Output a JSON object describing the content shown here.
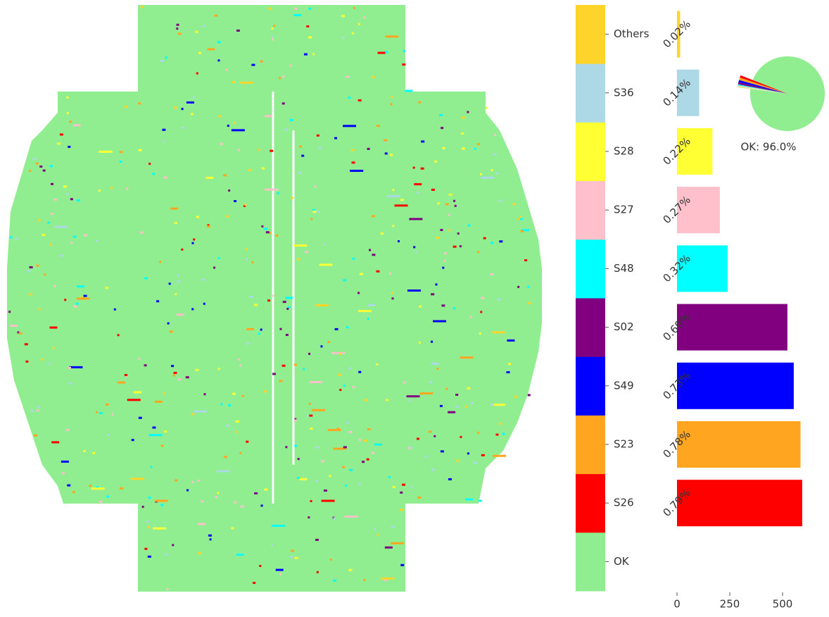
{
  "chart_data": [
    {
      "type": "colorbar",
      "categories": [
        "OK",
        "S26",
        "S23",
        "S49",
        "S02",
        "S48",
        "S27",
        "S28",
        "S36",
        "Others"
      ],
      "colors": [
        "#90ee90",
        "#ff0000",
        "#ffa520",
        "#0000ff",
        "#800080",
        "#00ffff",
        "#ffc0cb",
        "#ffff33",
        "#add8e6",
        "#ffd42a"
      ]
    },
    {
      "type": "bar",
      "categories": [
        "S26",
        "S23",
        "S49",
        "S02",
        "S48",
        "S27",
        "S28",
        "S36",
        "Others"
      ],
      "values": [
        593,
        585,
        553,
        523,
        240,
        203,
        168,
        105,
        15
      ],
      "value_labels": [
        "0.79%",
        "0.78%",
        "0.73%",
        "0.69%",
        "0.32%",
        "0.27%",
        "0.22%",
        "0.14%",
        "0.02%"
      ],
      "colors": [
        "#ff0000",
        "#ffa520",
        "#0000ff",
        "#800080",
        "#00ffff",
        "#ffc0cb",
        "#ffff33",
        "#add8e6",
        "#ffd42a"
      ],
      "xlim": [
        0,
        600
      ],
      "xticks": [
        0,
        250,
        500
      ]
    },
    {
      "type": "pie",
      "categories": [
        "OK",
        "S26",
        "S23",
        "S49",
        "S02",
        "S48",
        "S27",
        "S28",
        "S36",
        "Others"
      ],
      "values": [
        96.0,
        0.79,
        0.78,
        0.73,
        0.69,
        0.32,
        0.27,
        0.22,
        0.14,
        0.02
      ],
      "colors": [
        "#90ee90",
        "#ff0000",
        "#ffa520",
        "#0000ff",
        "#800080",
        "#00ffff",
        "#ffc0cb",
        "#ffff33",
        "#add8e6",
        "#ffd42a"
      ],
      "label": "OK:  96.0%"
    }
  ]
}
